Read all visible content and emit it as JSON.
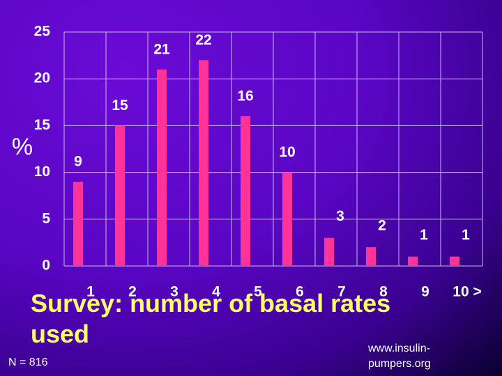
{
  "chart_data": {
    "type": "bar",
    "title": "Survey: number of basal rates used",
    "y_label": "%",
    "note": "N = 816",
    "source": "www.insulin-pumpers.org",
    "categories": [
      "1",
      "2",
      "3",
      "4",
      "5",
      "6",
      "7",
      "8",
      "9",
      "10 >"
    ],
    "values": [
      9,
      15,
      21,
      22,
      16,
      10,
      3,
      2,
      1,
      1
    ],
    "color": "#ff3399",
    "ylim": [
      0,
      25
    ],
    "yticks": [
      0,
      5,
      10,
      15,
      20,
      25
    ],
    "grid": true
  }
}
